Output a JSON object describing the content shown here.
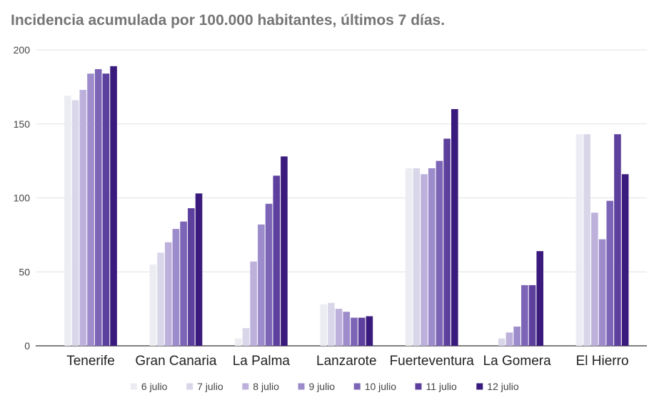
{
  "chart_data": {
    "type": "bar",
    "title": "Incidencia acumulada por 100.000 habitantes, últimos 7 días.",
    "xlabel": "",
    "ylabel": "",
    "ylim": [
      0,
      200
    ],
    "yticks": [
      "0",
      "50",
      "100",
      "150",
      "200"
    ],
    "grid": true,
    "legend_position": "bottom",
    "categories": [
      "Tenerife",
      "Gran Canaria",
      "La Palma",
      "Lanzarote",
      "Fuerteventura",
      "La Gomera",
      "El Hierro"
    ],
    "series": [
      {
        "name": "6 julio",
        "color": "#ececf3",
        "values": [
          169,
          55,
          5,
          28,
          120,
          0,
          143
        ]
      },
      {
        "name": "7 julio",
        "color": "#dad6ea",
        "values": [
          166,
          63,
          12,
          29,
          120,
          5,
          143
        ]
      },
      {
        "name": "8 julio",
        "color": "#bdb1dc",
        "values": [
          173,
          70,
          57,
          25,
          116,
          9,
          90
        ]
      },
      {
        "name": "9 julio",
        "color": "#9d8ccb",
        "values": [
          184,
          79,
          82,
          23,
          120,
          13,
          72
        ]
      },
      {
        "name": "10 julio",
        "color": "#7c64b6",
        "values": [
          187,
          84,
          96,
          19,
          125,
          41,
          98
        ]
      },
      {
        "name": "11 julio",
        "color": "#5d3f9d",
        "values": [
          184,
          93,
          115,
          19,
          140,
          41,
          143
        ]
      },
      {
        "name": "12 julio",
        "color": "#3a1b7d",
        "values": [
          189,
          103,
          128,
          20,
          160,
          64,
          116
        ]
      }
    ]
  }
}
